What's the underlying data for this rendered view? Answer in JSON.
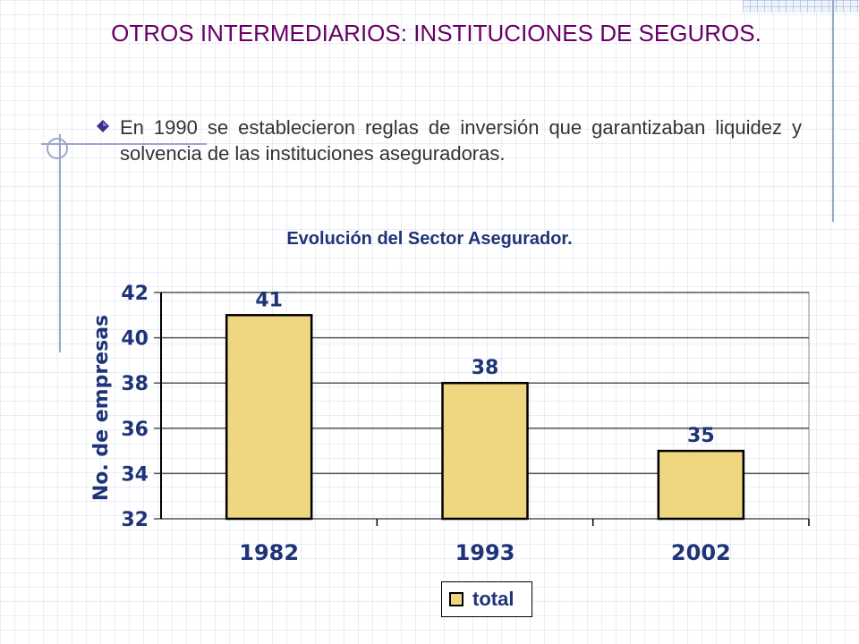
{
  "slide": {
    "title": "OTROS INTERMEDIARIOS: INSTITUCIONES DE SEGUROS.",
    "bullet": "En 1990 se establecieron reglas de inversión que garantizaban liquidez y solvencia de las instituciones aseguradoras."
  },
  "colors": {
    "title": "#660066",
    "chart_text": "#1f3478",
    "bar_fill": "#eed780"
  },
  "chart_data": {
    "type": "bar",
    "title": "Evolución del Sector Asegurador.",
    "xlabel": "",
    "ylabel": "No. de empresas",
    "categories": [
      "1982",
      "1993",
      "2002"
    ],
    "series": [
      {
        "name": "total",
        "values": [
          41,
          38,
          35
        ]
      }
    ],
    "ylim": [
      32,
      42
    ],
    "yticks": [
      "32",
      "34",
      "36",
      "38",
      "40",
      "42"
    ],
    "data_labels": [
      "41",
      "38",
      "35"
    ],
    "grid": true,
    "legend": "bottom"
  }
}
